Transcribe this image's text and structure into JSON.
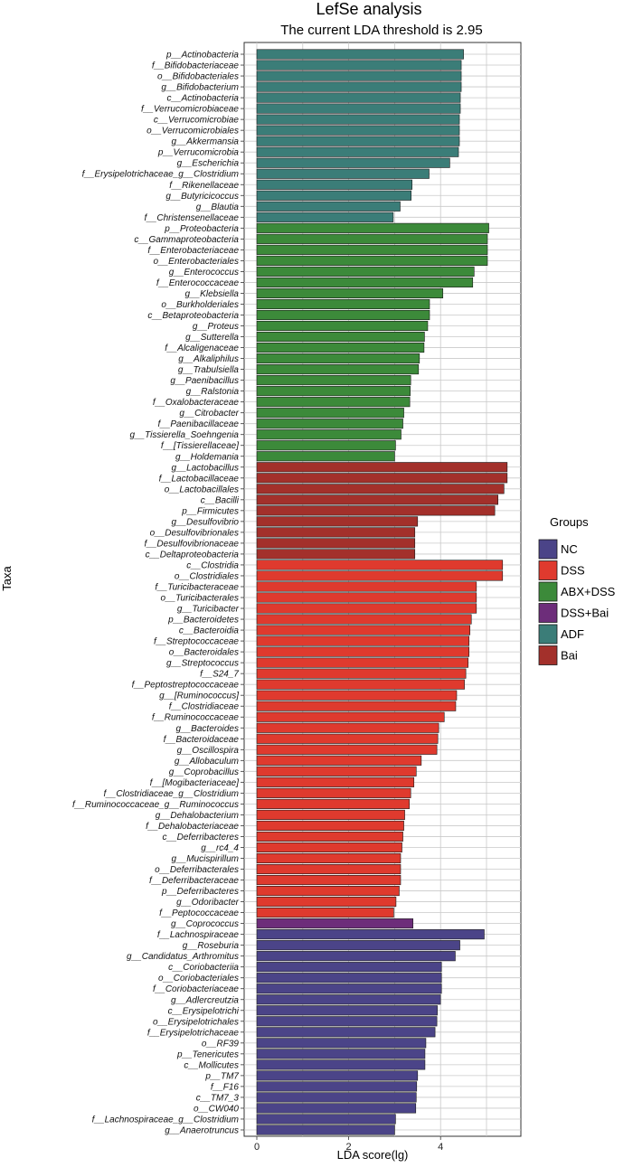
{
  "chart_data": {
    "type": "bar",
    "orientation": "horizontal",
    "title": "LefSe analysis",
    "subtitle": "The current LDA threshold is 2.95",
    "xlabel": "LDA score(lg)",
    "ylabel": "Taxa",
    "xlim": [
      -0.3,
      5.8
    ],
    "xticks": [
      0,
      2,
      4
    ],
    "grid": true,
    "legend": {
      "title": "Groups",
      "placement": "right",
      "entries": [
        {
          "name": "NC",
          "color": "#4b4488"
        },
        {
          "name": "DSS",
          "color": "#df3a2e"
        },
        {
          "name": "ABX+DSS",
          "color": "#3c8a3a"
        },
        {
          "name": "DSS+Bai",
          "color": "#6d2d7a"
        },
        {
          "name": "ADF",
          "color": "#3b7d78"
        },
        {
          "name": "Bai",
          "color": "#a3302b"
        }
      ]
    },
    "series": [
      {
        "name": "ADF",
        "color": "#3b7d78",
        "taxa": [
          {
            "label": "p__Actinobacteria",
            "value": 4.5
          },
          {
            "label": "f__Bifidobacteriaceae",
            "value": 4.45
          },
          {
            "label": "o__Bifidobacteriales",
            "value": 4.45
          },
          {
            "label": "g__Bifidobacterium",
            "value": 4.45
          },
          {
            "label": "c__Actinobacteria",
            "value": 4.43
          },
          {
            "label": "f__Verrucomicrobiaceae",
            "value": 4.43
          },
          {
            "label": "c__Verrucomicrobiae",
            "value": 4.41
          },
          {
            "label": "o__Verrucomicrobiales",
            "value": 4.41
          },
          {
            "label": "g__Akkermansia",
            "value": 4.41
          },
          {
            "label": "p__Verrucomicrobia",
            "value": 4.39
          },
          {
            "label": "g__Escherichia",
            "value": 4.2
          },
          {
            "label": "f__Erysipelotrichaceae_g__Clostridium",
            "value": 3.75
          },
          {
            "label": "f__Rikenellaceae",
            "value": 3.38
          },
          {
            "label": "g__Butyricicoccus",
            "value": 3.36
          },
          {
            "label": "g__Blautia",
            "value": 3.12
          },
          {
            "label": "f__Christensenellaceae",
            "value": 2.97
          }
        ]
      },
      {
        "name": "ABX+DSS",
        "color": "#3c8a3a",
        "taxa": [
          {
            "label": "p__Proteobacteria",
            "value": 5.05
          },
          {
            "label": "c__Gammaproteobacteria",
            "value": 5.02
          },
          {
            "label": "f__Enterobacteriaceae",
            "value": 5.02
          },
          {
            "label": "o__Enterobacteriales",
            "value": 5.02
          },
          {
            "label": "g__Enterococcus",
            "value": 4.73
          },
          {
            "label": "f__Enterococcaceae",
            "value": 4.7
          },
          {
            "label": "g__Klebsiella",
            "value": 4.05
          },
          {
            "label": "o__Burkholderiales",
            "value": 3.76
          },
          {
            "label": "c__Betaproteobacteria",
            "value": 3.76
          },
          {
            "label": "g__Proteus",
            "value": 3.72
          },
          {
            "label": "g__Sutterella",
            "value": 3.65
          },
          {
            "label": "f__Alcaligenaceae",
            "value": 3.64
          },
          {
            "label": "g__Alkaliphilus",
            "value": 3.54
          },
          {
            "label": "g__Trabulsiella",
            "value": 3.52
          },
          {
            "label": "g__Paenibacillus",
            "value": 3.35
          },
          {
            "label": "g__Ralstonia",
            "value": 3.34
          },
          {
            "label": "f__Oxalobacteraceae",
            "value": 3.33
          },
          {
            "label": "g__Citrobacter",
            "value": 3.2
          },
          {
            "label": "f__Paenibacillaceae",
            "value": 3.18
          },
          {
            "label": "g__Tissierella_Soehngenia",
            "value": 3.14
          },
          {
            "label": "f__[Tissierellaceae]",
            "value": 3.02
          },
          {
            "label": "g__Holdemania",
            "value": 3.0
          }
        ]
      },
      {
        "name": "Bai",
        "color": "#a3302b",
        "taxa": [
          {
            "label": "g__Lactobacillus",
            "value": 5.45
          },
          {
            "label": "f__Lactobacillaceae",
            "value": 5.45
          },
          {
            "label": "o__Lactobacillales",
            "value": 5.38
          },
          {
            "label": "c__Bacilli",
            "value": 5.25
          },
          {
            "label": "p__Firmicutes",
            "value": 5.18
          },
          {
            "label": "g__Desulfovibrio",
            "value": 3.5
          },
          {
            "label": "o__Desulfovibrionales",
            "value": 3.44
          },
          {
            "label": "f__Desulfovibrionaceae",
            "value": 3.44
          },
          {
            "label": "c__Deltaproteobacteria",
            "value": 3.44
          }
        ]
      },
      {
        "name": "DSS",
        "color": "#df3a2e",
        "taxa": [
          {
            "label": "c__Clostridia",
            "value": 5.35
          },
          {
            "label": "o__Clostridiales",
            "value": 5.35
          },
          {
            "label": "f__Turicibacteraceae",
            "value": 4.78
          },
          {
            "label": "o__Turicibacterales",
            "value": 4.78
          },
          {
            "label": "g__Turicibacter",
            "value": 4.78
          },
          {
            "label": "p__Bacteroidetes",
            "value": 4.67
          },
          {
            "label": "c__Bacteroidia",
            "value": 4.64
          },
          {
            "label": "f__Streptococcaceae",
            "value": 4.62
          },
          {
            "label": "o__Bacteroidales",
            "value": 4.62
          },
          {
            "label": "g__Streptococcus",
            "value": 4.6
          },
          {
            "label": "f__S24_7",
            "value": 4.55
          },
          {
            "label": "f__Peptostreptococcaceae",
            "value": 4.52
          },
          {
            "label": "g__[Ruminococcus]",
            "value": 4.35
          },
          {
            "label": "f__Clostridiaceae",
            "value": 4.33
          },
          {
            "label": "f__Ruminococcaceae",
            "value": 4.08
          },
          {
            "label": "g__Bacteroides",
            "value": 3.96
          },
          {
            "label": "f__Bacteroidaceae",
            "value": 3.94
          },
          {
            "label": "g__Oscillospira",
            "value": 3.92
          },
          {
            "label": "g__Allobaculum",
            "value": 3.58
          },
          {
            "label": "g__Coprobacillus",
            "value": 3.47
          },
          {
            "label": "f__[Mogibacteriaceae]",
            "value": 3.42
          },
          {
            "label": "f__Clostridiaceae_g__Clostridium",
            "value": 3.35
          },
          {
            "label": "f__Ruminococcaceae_g__Ruminococcus",
            "value": 3.32
          },
          {
            "label": "g__Dehalobacterium",
            "value": 3.22
          },
          {
            "label": "f__Dehalobacteriaceae",
            "value": 3.2
          },
          {
            "label": "c__Deferribacteres",
            "value": 3.18
          },
          {
            "label": "g__rc4_4",
            "value": 3.16
          },
          {
            "label": "g__Mucispirillum",
            "value": 3.13
          },
          {
            "label": "o__Deferribacterales",
            "value": 3.13
          },
          {
            "label": "f__Deferribacteraceae",
            "value": 3.13
          },
          {
            "label": "p__Deferribacteres",
            "value": 3.1
          },
          {
            "label": "g__Odoribacter",
            "value": 3.03
          },
          {
            "label": "f__Peptococcaceae",
            "value": 2.98
          }
        ]
      },
      {
        "name": "DSS+Bai",
        "color": "#6d2d7a",
        "taxa": [
          {
            "label": "g__Coprococcus",
            "value": 3.4
          }
        ]
      },
      {
        "name": "NC",
        "color": "#4b4488",
        "taxa": [
          {
            "label": "f__Lachnospiraceae",
            "value": 4.95
          },
          {
            "label": "g__Roseburia",
            "value": 4.42
          },
          {
            "label": "g__Candidatus_Arthromitus",
            "value": 4.32
          },
          {
            "label": "c__Coriobacteriia",
            "value": 4.02
          },
          {
            "label": "o__Coriobacteriales",
            "value": 4.02
          },
          {
            "label": "f__Coriobacteriaceae",
            "value": 4.02
          },
          {
            "label": "g__Adlercreutzia",
            "value": 4.0
          },
          {
            "label": "c__Erysipelotrichi",
            "value": 3.93
          },
          {
            "label": "o__Erysipelotrichales",
            "value": 3.92
          },
          {
            "label": "f__Erysipelotrichaceae",
            "value": 3.88
          },
          {
            "label": "o__RF39",
            "value": 3.68
          },
          {
            "label": "p__Tenericutes",
            "value": 3.66
          },
          {
            "label": "c__Mollicutes",
            "value": 3.66
          },
          {
            "label": "p__TM7",
            "value": 3.5
          },
          {
            "label": "f__F16",
            "value": 3.48
          },
          {
            "label": "c__TM7_3",
            "value": 3.47
          },
          {
            "label": "o__CW040",
            "value": 3.46
          },
          {
            "label": "f__Lachnospiraceae_g__Clostridium",
            "value": 3.02
          },
          {
            "label": "g__Anaerotruncus",
            "value": 3.0
          }
        ]
      }
    ]
  }
}
